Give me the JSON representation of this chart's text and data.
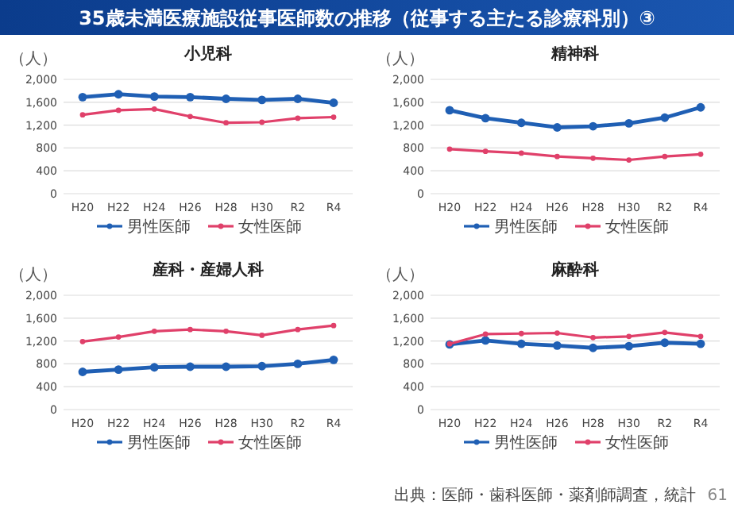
{
  "chart_data": [
    {
      "type": "other",
      "title": "35歳未満医療施設従事医師数の推移（従事する主たる診療科別）③",
      "annotations": [
        "出典：医師・歯科医師・薬剤師調査，統計",
        "61"
      ]
    },
    {
      "type": "line",
      "title": "小児科",
      "ylabel": "（人）",
      "categories": [
        "H20",
        "H22",
        "H24",
        "H26",
        "H28",
        "H30",
        "R2",
        "R4"
      ],
      "ylim": [
        0,
        2000
      ],
      "yticks": [
        {
          "value": 0,
          "label": "0"
        },
        {
          "value": 400,
          "label": "400"
        },
        {
          "value": 800,
          "label": "800"
        },
        {
          "value": 1200,
          "label": "1,200"
        },
        {
          "value": 1600,
          "label": "1,600"
        },
        {
          "value": 2000,
          "label": "2,000"
        }
      ],
      "grid": "y",
      "legend": "bottom",
      "marker": "circle",
      "series": [
        {
          "name": "男性医師",
          "color": "#1f5fb4",
          "values": [
            1690,
            1740,
            1700,
            1690,
            1660,
            1640,
            1660,
            1590
          ]
        },
        {
          "name": "女性医師",
          "color": "#e0406a",
          "values": [
            1380,
            1460,
            1480,
            1350,
            1240,
            1250,
            1320,
            1340
          ]
        }
      ]
    },
    {
      "type": "line",
      "title": "精神科",
      "ylabel": "（人）",
      "categories": [
        "H20",
        "H22",
        "H24",
        "H26",
        "H28",
        "H30",
        "R2",
        "R4"
      ],
      "ylim": [
        0,
        2000
      ],
      "yticks": [
        {
          "value": 0,
          "label": "0"
        },
        {
          "value": 400,
          "label": "400"
        },
        {
          "value": 800,
          "label": "800"
        },
        {
          "value": 1200,
          "label": "1,200"
        },
        {
          "value": 1600,
          "label": "1,600"
        },
        {
          "value": 2000,
          "label": "2,000"
        }
      ],
      "grid": "y",
      "legend": "bottom",
      "marker": "circle",
      "series": [
        {
          "name": "男性医師",
          "color": "#1f5fb4",
          "values": [
            1460,
            1320,
            1240,
            1160,
            1180,
            1230,
            1330,
            1510
          ]
        },
        {
          "name": "女性医師",
          "color": "#e0406a",
          "values": [
            780,
            740,
            710,
            650,
            620,
            590,
            650,
            690
          ]
        }
      ]
    },
    {
      "type": "line",
      "title": "産科・産婦人科",
      "ylabel": "（人）",
      "categories": [
        "H20",
        "H22",
        "H24",
        "H26",
        "H28",
        "H30",
        "R2",
        "R4"
      ],
      "ylim": [
        0,
        2000
      ],
      "yticks": [
        {
          "value": 0,
          "label": "0"
        },
        {
          "value": 400,
          "label": "400"
        },
        {
          "value": 800,
          "label": "800"
        },
        {
          "value": 1200,
          "label": "1,200"
        },
        {
          "value": 1600,
          "label": "1,600"
        },
        {
          "value": 2000,
          "label": "2,000"
        }
      ],
      "grid": "y",
      "legend": "bottom",
      "marker": "circle",
      "series": [
        {
          "name": "男性医師",
          "color": "#1f5fb4",
          "values": [
            660,
            700,
            740,
            750,
            750,
            760,
            800,
            870
          ]
        },
        {
          "name": "女性医師",
          "color": "#e0406a",
          "values": [
            1190,
            1270,
            1370,
            1400,
            1370,
            1300,
            1400,
            1470
          ]
        }
      ]
    },
    {
      "type": "line",
      "title": "麻酔科",
      "ylabel": "（人）",
      "categories": [
        "H20",
        "H22",
        "H24",
        "H26",
        "H28",
        "H30",
        "R2",
        "R4"
      ],
      "ylim": [
        0,
        2000
      ],
      "yticks": [
        {
          "value": 0,
          "label": "0"
        },
        {
          "value": 400,
          "label": "400"
        },
        {
          "value": 800,
          "label": "800"
        },
        {
          "value": 1200,
          "label": "1,200"
        },
        {
          "value": 1600,
          "label": "1,600"
        },
        {
          "value": 2000,
          "label": "2,000"
        }
      ],
      "grid": "y",
      "legend": "bottom",
      "marker": "circle",
      "series": [
        {
          "name": "男性医師",
          "color": "#1f5fb4",
          "values": [
            1140,
            1210,
            1150,
            1120,
            1080,
            1110,
            1170,
            1150
          ]
        },
        {
          "name": "女性医師",
          "color": "#e0406a",
          "values": [
            1150,
            1320,
            1330,
            1340,
            1260,
            1280,
            1350,
            1280
          ]
        }
      ]
    }
  ]
}
